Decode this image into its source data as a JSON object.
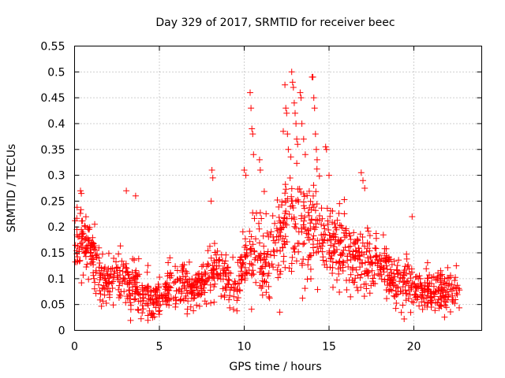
{
  "chart_data": {
    "type": "scatter",
    "title": "Day 329 of 2017, SRMTID for receiver beec",
    "xlabel": "GPS time / hours",
    "ylabel": "SRMTID / TECUs",
    "xlim": [
      0,
      24
    ],
    "ylim": [
      0,
      0.55
    ],
    "xticks": [
      0,
      5,
      10,
      15,
      20
    ],
    "xtick_labels": [
      "0",
      "5",
      "10",
      "15",
      "20"
    ],
    "yticks": [
      0,
      0.05,
      0.1,
      0.15,
      0.2,
      0.25,
      0.3,
      0.35,
      0.4,
      0.45,
      0.5,
      0.55
    ],
    "ytick_labels": [
      "0",
      "0.05",
      "0.1",
      "0.15",
      "0.2",
      "0.25",
      "0.3",
      "0.35",
      "0.4",
      "0.45",
      "0.5",
      "0.55"
    ],
    "grid": true,
    "marker": "+",
    "color": "#ff0000",
    "trend": {
      "x": [
        0,
        0.5,
        1,
        1.5,
        2,
        2.5,
        3,
        3.5,
        4,
        4.5,
        5,
        5.5,
        6,
        6.5,
        7,
        7.5,
        8,
        8.5,
        9,
        9.5,
        10,
        10.5,
        11,
        11.5,
        12,
        12.5,
        13,
        13.5,
        14,
        14.5,
        15,
        15.5,
        16,
        16.5,
        17,
        17.5,
        18,
        18.5,
        19,
        19.5,
        20,
        20.5,
        21,
        21.5,
        22,
        22.7
      ],
      "y": [
        0.15,
        0.17,
        0.16,
        0.1,
        0.09,
        0.11,
        0.1,
        0.09,
        0.07,
        0.06,
        0.065,
        0.08,
        0.085,
        0.09,
        0.08,
        0.085,
        0.11,
        0.13,
        0.1,
        0.09,
        0.13,
        0.15,
        0.14,
        0.13,
        0.19,
        0.2,
        0.22,
        0.2,
        0.19,
        0.2,
        0.17,
        0.16,
        0.15,
        0.14,
        0.15,
        0.13,
        0.12,
        0.11,
        0.09,
        0.09,
        0.085,
        0.075,
        0.075,
        0.08,
        0.075,
        0.075
      ],
      "spread": [
        0.06,
        0.07,
        0.06,
        0.04,
        0.04,
        0.04,
        0.05,
        0.05,
        0.04,
        0.035,
        0.035,
        0.04,
        0.04,
        0.04,
        0.04,
        0.04,
        0.05,
        0.05,
        0.04,
        0.04,
        0.06,
        0.08,
        0.07,
        0.07,
        0.09,
        0.1,
        0.1,
        0.09,
        0.09,
        0.08,
        0.07,
        0.07,
        0.06,
        0.06,
        0.07,
        0.06,
        0.05,
        0.04,
        0.04,
        0.04,
        0.04,
        0.035,
        0.035,
        0.035,
        0.035,
        0.03
      ]
    },
    "peaks": [
      {
        "x": 0.35,
        "y": 0.27
      },
      {
        "x": 0.4,
        "y": 0.265
      },
      {
        "x": 3.05,
        "y": 0.27
      },
      {
        "x": 3.6,
        "y": 0.26
      },
      {
        "x": 8.1,
        "y": 0.31
      },
      {
        "x": 8.15,
        "y": 0.295
      },
      {
        "x": 8.05,
        "y": 0.25
      },
      {
        "x": 10.0,
        "y": 0.31
      },
      {
        "x": 10.1,
        "y": 0.3
      },
      {
        "x": 10.35,
        "y": 0.46
      },
      {
        "x": 10.4,
        "y": 0.43
      },
      {
        "x": 10.45,
        "y": 0.39
      },
      {
        "x": 10.5,
        "y": 0.38
      },
      {
        "x": 10.55,
        "y": 0.34
      },
      {
        "x": 10.9,
        "y": 0.33
      },
      {
        "x": 10.95,
        "y": 0.31
      },
      {
        "x": 12.4,
        "y": 0.475
      },
      {
        "x": 12.45,
        "y": 0.43
      },
      {
        "x": 12.5,
        "y": 0.42
      },
      {
        "x": 12.55,
        "y": 0.38
      },
      {
        "x": 12.6,
        "y": 0.35
      },
      {
        "x": 12.3,
        "y": 0.385
      },
      {
        "x": 12.8,
        "y": 0.5
      },
      {
        "x": 12.85,
        "y": 0.48
      },
      {
        "x": 12.9,
        "y": 0.47
      },
      {
        "x": 12.95,
        "y": 0.44
      },
      {
        "x": 13.0,
        "y": 0.42
      },
      {
        "x": 13.05,
        "y": 0.4
      },
      {
        "x": 13.1,
        "y": 0.37
      },
      {
        "x": 13.15,
        "y": 0.36
      },
      {
        "x": 13.3,
        "y": 0.46
      },
      {
        "x": 13.35,
        "y": 0.45
      },
      {
        "x": 13.4,
        "y": 0.4
      },
      {
        "x": 13.5,
        "y": 0.37
      },
      {
        "x": 13.6,
        "y": 0.34
      },
      {
        "x": 14.0,
        "y": 0.49
      },
      {
        "x": 14.05,
        "y": 0.49
      },
      {
        "x": 14.1,
        "y": 0.45
      },
      {
        "x": 14.15,
        "y": 0.43
      },
      {
        "x": 14.2,
        "y": 0.38
      },
      {
        "x": 14.25,
        "y": 0.35
      },
      {
        "x": 14.3,
        "y": 0.33
      },
      {
        "x": 14.8,
        "y": 0.355
      },
      {
        "x": 14.85,
        "y": 0.35
      },
      {
        "x": 15.0,
        "y": 0.3
      },
      {
        "x": 16.9,
        "y": 0.305
      },
      {
        "x": 17.0,
        "y": 0.29
      },
      {
        "x": 17.1,
        "y": 0.275
      },
      {
        "x": 19.9,
        "y": 0.22
      },
      {
        "x": 22.5,
        "y": 0.125
      }
    ],
    "sample_count": 1400,
    "seed": 329
  }
}
